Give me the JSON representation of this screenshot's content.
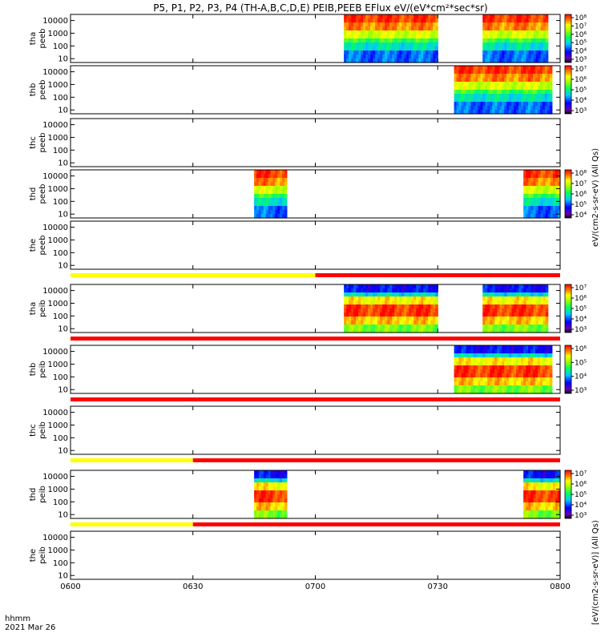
{
  "title": "P5, P1, P2, P3, P4 (TH-A,B,C,D,E) PEIB,PEEB EFlux eV/(eV*cm²*sec*sr)",
  "x_axis": {
    "ticks": [
      "0600",
      "0630",
      "0700",
      "0730",
      "0800"
    ],
    "label_line1": "hhmm",
    "label_line2": "2021 Mar 26"
  },
  "y_tick_labels": [
    "10",
    "100",
    "1000",
    "10000"
  ],
  "colorbar_labels": {
    "electron": "eV/(cm2-s-sr-eV) (All Qs)",
    "ion": "[eV/(cm2-s-sr-eV)] (All Qs)"
  },
  "colorbar_ticks": {
    "a_peeb": [
      "10³",
      "10⁴",
      "10⁵",
      "10⁶",
      "10⁷",
      "10⁸"
    ],
    "b_peeb": [
      "10³",
      "10⁴",
      "10⁵",
      "10⁶",
      "10⁷"
    ],
    "d_peeb": [
      "10⁴",
      "10⁵",
      "10⁶",
      "10⁷",
      "10⁸"
    ],
    "a_peib": [
      "10³",
      "10⁴",
      "10⁵",
      "10⁶",
      "10⁷"
    ],
    "b_peib": [
      "10³",
      "10⁴",
      "10⁵",
      "10⁶"
    ],
    "d_peib": [
      "10³",
      "10⁴",
      "10⁵",
      "10⁶",
      "10⁷"
    ]
  },
  "chart_data": {
    "type": "heatmap",
    "x_range_hhmm": [
      "0600",
      "0800"
    ],
    "y_scale": "log",
    "y_range_eV": [
      5,
      30000
    ],
    "panels": [
      {
        "probe": "tha",
        "label_top": "tha",
        "label_bottom": "peeb",
        "species": "electron",
        "intervals_hhmm": [
          [
            "0707",
            "0730"
          ],
          [
            "0741",
            "0757"
          ]
        ],
        "colorbar": "a_peeb"
      },
      {
        "probe": "thb",
        "label_top": "thb",
        "label_bottom": "peeb",
        "species": "electron",
        "intervals_hhmm": [
          [
            "0734",
            "0758"
          ]
        ],
        "colorbar": "b_peeb"
      },
      {
        "probe": "thc",
        "label_top": "thc",
        "label_bottom": "peeb",
        "species": "electron",
        "intervals_hhmm": [],
        "colorbar": null
      },
      {
        "probe": "thd",
        "label_top": "thd",
        "label_bottom": "peeb",
        "species": "electron",
        "intervals_hhmm": [
          [
            "0645",
            "0653"
          ],
          [
            "0751",
            "0800"
          ]
        ],
        "colorbar": "d_peeb"
      },
      {
        "probe": "the",
        "label_top": "the",
        "label_bottom": "peeb",
        "species": "electron",
        "intervals_hhmm": [],
        "colorbar": null
      },
      {
        "probe": "tha",
        "label_top": "tha",
        "label_bottom": "peib",
        "species": "ion",
        "intervals_hhmm": [
          [
            "0707",
            "0730"
          ],
          [
            "0741",
            "0757"
          ]
        ],
        "colorbar": "a_peib"
      },
      {
        "probe": "thb",
        "label_top": "thb",
        "label_bottom": "peib",
        "species": "ion",
        "intervals_hhmm": [
          [
            "0734",
            "0758"
          ]
        ],
        "colorbar": "b_peib"
      },
      {
        "probe": "thc",
        "label_top": "thc",
        "label_bottom": "peib",
        "species": "ion",
        "intervals_hhmm": [],
        "colorbar": null
      },
      {
        "probe": "thd",
        "label_top": "thd",
        "label_bottom": "peib",
        "species": "ion",
        "intervals_hhmm": [
          [
            "0645",
            "0653"
          ],
          [
            "0751",
            "0800"
          ]
        ],
        "colorbar": "d_peib"
      },
      {
        "probe": "the",
        "label_top": "the",
        "label_bottom": "peib",
        "species": "ion",
        "intervals_hhmm": [],
        "colorbar": null
      }
    ],
    "mode_bars": [
      {
        "after_panel": 4,
        "segments": [
          {
            "color": "#ffff00",
            "from": "0600",
            "to": "0700"
          },
          {
            "color": "#ff0000",
            "from": "0700",
            "to": "0800"
          }
        ]
      },
      {
        "after_panel": 5,
        "segments": [
          {
            "color": "#ff0000",
            "from": "0600",
            "to": "0800"
          }
        ]
      },
      {
        "after_panel": 6,
        "segments": [
          {
            "color": "#ff0000",
            "from": "0600",
            "to": "0800"
          }
        ]
      },
      {
        "after_panel": 7,
        "segments": [
          {
            "color": "#ffff00",
            "from": "0600",
            "to": "0630"
          },
          {
            "color": "#ff0000",
            "from": "0630",
            "to": "0800"
          }
        ]
      },
      {
        "after_panel": 8,
        "segments": [
          {
            "color": "#ffff00",
            "from": "0600",
            "to": "0630"
          },
          {
            "color": "#ff0000",
            "from": "0630",
            "to": "0800"
          }
        ]
      }
    ]
  }
}
